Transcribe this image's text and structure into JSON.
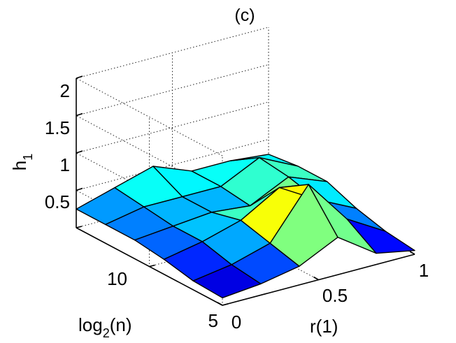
{
  "chart_data": {
    "type": "surface3d",
    "title": "(c)",
    "zlabel": {
      "base": "h",
      "subscript": "1"
    },
    "xlabel": "r(1)",
    "ylabel": {
      "prefix": "log",
      "subscript": "2",
      "suffix": "(n)"
    },
    "z_ticks": [
      "2",
      "1.5",
      "1",
      "0.5"
    ],
    "x_ticks": [
      "0",
      "0.5",
      "1"
    ],
    "y_ticks": [
      "5",
      "10"
    ],
    "zlim": [
      0,
      2
    ],
    "xlim": [
      0,
      1
    ],
    "ylim": [
      5,
      15
    ],
    "grid": true,
    "colormap": "jet",
    "x": [
      0,
      0.2,
      0.4,
      0.6,
      0.8,
      1.0
    ],
    "y": [
      5,
      7,
      9,
      11,
      13,
      15
    ],
    "z": [
      [
        0.1,
        0.15,
        0.25,
        0.5,
        0.15,
        0.05
      ],
      [
        0.12,
        0.2,
        0.35,
        1.0,
        0.4,
        0.1
      ],
      [
        0.2,
        0.3,
        0.45,
        0.75,
        0.45,
        0.2
      ],
      [
        0.25,
        0.3,
        0.35,
        0.3,
        0.55,
        0.35
      ],
      [
        0.25,
        0.35,
        0.35,
        0.35,
        0.6,
        0.35
      ],
      [
        0.25,
        0.4,
        0.55,
        0.35,
        0.35,
        0.3
      ]
    ]
  }
}
